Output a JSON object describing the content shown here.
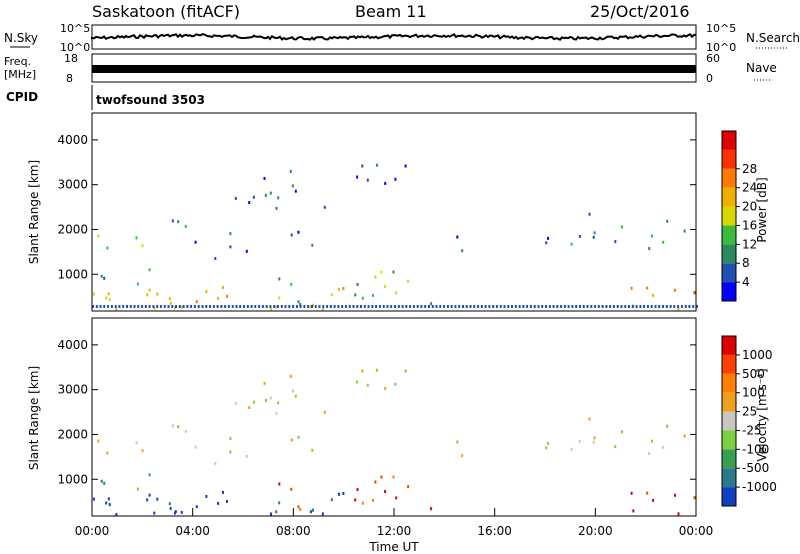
{
  "header": {
    "station": "Saskatoon (fitACF)",
    "beam": "Beam 11",
    "date": "25/Oct/2016"
  },
  "strips": {
    "nsky": {
      "label": "N.Sky",
      "ticks": [
        "10^5",
        "10^0"
      ]
    },
    "nsearch": {
      "label": "N.Search",
      "ticks": [
        "10^5",
        "10^0"
      ]
    },
    "freq": {
      "label_top": "Freq.",
      "label_unit": "[MHz]",
      "ticks": [
        "18",
        "8"
      ]
    },
    "nave": {
      "label": "Nave",
      "ticks": [
        "60",
        "0"
      ]
    },
    "cpid": {
      "label": "CPID",
      "program": "twofsound 3503"
    }
  },
  "chart_data": [
    {
      "type": "heatmap",
      "name": "power",
      "ylabel": "Slant Range [km]",
      "xlabel": "",
      "ylim": [
        180,
        4600
      ],
      "yticks": [
        "1000",
        "2000",
        "3000",
        "4000"
      ],
      "colorbar": {
        "label": "Power [dB]",
        "ticks": [
          "4",
          "8",
          "12",
          "16",
          "20",
          "24",
          "28"
        ],
        "colors": [
          "#0000ff",
          "#1f4fb0",
          "#2a8a5c",
          "#3cbb3c",
          "#d8d800",
          "#f0b000",
          "#ff7a00",
          "#ff3000",
          "#e00000"
        ]
      }
    },
    {
      "type": "heatmap",
      "name": "velocity",
      "ylabel": "Slant Range [km]",
      "xlabel": "Time UT",
      "ylim": [
        180,
        4600
      ],
      "yticks": [
        "1000",
        "2000",
        "3000",
        "4000"
      ],
      "xticks": [
        "00:00",
        "04:00",
        "08:00",
        "12:00",
        "16:00",
        "20:00",
        "00:00"
      ],
      "colorbar": {
        "label": "Velocity [m s⁻¹]",
        "ticks": [
          "1000",
          "500",
          "100",
          "25",
          "-25",
          "-100",
          "-500",
          "-1000"
        ],
        "colors": [
          "#1040c0",
          "#2a7a8a",
          "#36a050",
          "#7ad040",
          "#c8c8c0",
          "#f0a020",
          "#ff8000",
          "#ff4000",
          "#e00000"
        ]
      }
    }
  ]
}
